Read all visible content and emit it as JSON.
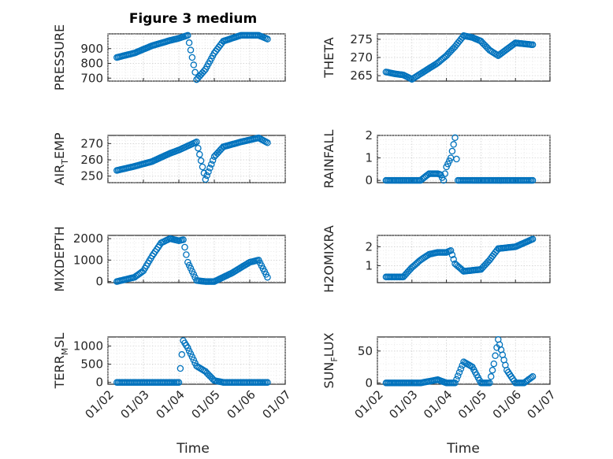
{
  "figure": {
    "title": "Figure 3 medium",
    "marker_color": "#0072BD",
    "xlabel": "Time",
    "x_tick_labels": [
      "01/02",
      "01/03",
      "01/04",
      "01/05",
      "01/06",
      "01/07"
    ]
  },
  "chart_data": [
    {
      "type": "scatter",
      "marker": "circle",
      "ylabel": "PRESSURE",
      "title": "Figure 3 medium",
      "xlabel": "",
      "xlim": [
        "01/02",
        "01/07"
      ],
      "ylim": [
        680,
        1000
      ],
      "yticks": [
        700,
        800,
        900
      ],
      "x": [
        "01/02 06:00",
        "01/02 18:00",
        "01/03 06:00",
        "01/03 18:00",
        "01/04 00:00",
        "01/04 03:00",
        "01/04 06:00",
        "01/04 12:00",
        "01/04 18:00",
        "01/05 00:00",
        "01/05 06:00",
        "01/05 18:00",
        "01/06 06:00",
        "01/06 12:00"
      ],
      "y": [
        840,
        870,
        920,
        955,
        970,
        980,
        990,
        690,
        760,
        870,
        950,
        990,
        990,
        965
      ]
    },
    {
      "type": "scatter",
      "marker": "circle",
      "ylabel": "THETA",
      "xlabel": "",
      "xlim": [
        "01/02",
        "01/07"
      ],
      "ylim": [
        263.5,
        276.5
      ],
      "yticks": [
        265,
        270,
        275
      ],
      "x": [
        "01/02 06:00",
        "01/02 12:00",
        "01/02 18:00",
        "01/03 00:00",
        "01/03 06:00",
        "01/03 18:00",
        "01/04 00:00",
        "01/04 06:00",
        "01/04 12:00",
        "01/04 18:00",
        "01/05 00:00",
        "01/05 06:00",
        "01/05 12:00",
        "01/06 00:00",
        "01/06 12:00"
      ],
      "y": [
        266,
        265.5,
        265.2,
        264,
        265.5,
        268.5,
        270.5,
        273,
        276,
        275.5,
        274.5,
        272,
        270.5,
        274,
        273.5
      ]
    },
    {
      "type": "scatter",
      "marker": "circle",
      "ylabel": "AIR_TEMP",
      "xlabel": "",
      "xlim": [
        "01/02",
        "01/07"
      ],
      "ylim": [
        246,
        275
      ],
      "yticks": [
        250,
        260,
        270
      ],
      "x": [
        "01/02 06:00",
        "01/02 18:00",
        "01/03 06:00",
        "01/03 18:00",
        "01/04 00:00",
        "01/04 06:00",
        "01/04 12:00",
        "01/04 18:00",
        "01/05 00:00",
        "01/05 06:00",
        "01/05 18:00",
        "01/06 06:00",
        "01/06 12:00"
      ],
      "y": [
        253.5,
        256,
        259,
        264,
        266,
        268.5,
        271,
        248,
        262,
        268,
        271,
        273.5,
        270.5
      ]
    },
    {
      "type": "scatter",
      "marker": "circle",
      "ylabel": "RAINFALL",
      "xlabel": "",
      "xlim": [
        "01/02",
        "01/07"
      ],
      "ylim": [
        -0.1,
        2
      ],
      "yticks": [
        0,
        1,
        2
      ],
      "x": [
        "01/02 06:00",
        "01/02 18:00",
        "01/03 06:00",
        "01/03 12:00",
        "01/03 18:00",
        "01/03 20:00",
        "01/03 22:00",
        "01/04 00:00",
        "01/04 03:00",
        "01/04 06:00",
        "01/04 08:00",
        "01/04 12:00",
        "01/04 18:00",
        "01/05 06:00",
        "01/05 18:00",
        "01/06 06:00",
        "01/06 12:00"
      ],
      "y": [
        0,
        0,
        0,
        0.3,
        0.3,
        0.25,
        0,
        0.6,
        1,
        1.9,
        0,
        0,
        0,
        0,
        0,
        0,
        0
      ]
    },
    {
      "type": "scatter",
      "marker": "circle",
      "ylabel": "MIXDEPTH",
      "xlabel": "",
      "xlim": [
        "01/02",
        "01/07"
      ],
      "ylim": [
        -50,
        2150
      ],
      "yticks": [
        0,
        1000,
        2000
      ],
      "x": [
        "01/02 06:00",
        "01/02 18:00",
        "01/03 00:00",
        "01/03 06:00",
        "01/03 12:00",
        "01/03 18:00",
        "01/04 00:00",
        "01/04 03:00",
        "01/04 06:00",
        "01/04 12:00",
        "01/04 18:00",
        "01/05 00:00",
        "01/05 12:00",
        "01/06 00:00",
        "01/06 06:00",
        "01/06 12:00"
      ],
      "y": [
        0,
        200,
        500,
        1200,
        1800,
        2000,
        1900,
        1950,
        900,
        50,
        0,
        0,
        400,
        900,
        1000,
        200
      ]
    },
    {
      "type": "scatter",
      "marker": "circle",
      "ylabel": "H2OMIXRA",
      "xlabel": "",
      "xlim": [
        "01/02",
        "01/07"
      ],
      "ylim": [
        0.1,
        2.6
      ],
      "yticks": [
        1,
        2
      ],
      "x": [
        "01/02 06:00",
        "01/02 18:00",
        "01/03 00:00",
        "01/03 06:00",
        "01/03 12:00",
        "01/03 18:00",
        "01/04 00:00",
        "01/04 03:00",
        "01/04 06:00",
        "01/04 12:00",
        "01/05 00:00",
        "01/05 06:00",
        "01/05 12:00",
        "01/06 00:00",
        "01/06 12:00"
      ],
      "y": [
        0.4,
        0.4,
        0.9,
        1.3,
        1.6,
        1.7,
        1.7,
        1.8,
        1.1,
        0.7,
        0.8,
        1.3,
        1.9,
        2.0,
        2.4
      ]
    },
    {
      "type": "scatter",
      "marker": "circle",
      "ylabel": "TERR_MSL",
      "xlabel": "Time",
      "xlim": [
        "01/02",
        "01/07"
      ],
      "ylim": [
        -50,
        1250
      ],
      "yticks": [
        0,
        500,
        1000
      ],
      "x": [
        "01/02 06:00",
        "01/03 00:00",
        "01/03 18:00",
        "01/04 00:00",
        "01/04 03:00",
        "01/04 06:00",
        "01/04 12:00",
        "01/04 18:00",
        "01/05 00:00",
        "01/05 06:00",
        "01/05 18:00",
        "01/06 06:00",
        "01/06 12:00"
      ],
      "y": [
        0,
        0,
        0,
        0,
        1150,
        950,
        450,
        300,
        50,
        0,
        0,
        0,
        0
      ]
    },
    {
      "type": "scatter",
      "marker": "circle",
      "ylabel": "SUN_FLUX",
      "xlabel": "Time",
      "xlim": [
        "01/02",
        "01/07"
      ],
      "ylim": [
        -2,
        72
      ],
      "yticks": [
        0,
        50
      ],
      "x": [
        "01/02 06:00",
        "01/02 18:00",
        "01/03 06:00",
        "01/03 18:00",
        "01/04 00:00",
        "01/04 06:00",
        "01/04 12:00",
        "01/04 18:00",
        "01/05 00:00",
        "01/05 06:00",
        "01/05 09:00",
        "01/05 12:00",
        "01/05 18:00",
        "01/06 00:00",
        "01/06 06:00",
        "01/06 12:00"
      ],
      "y": [
        0,
        0,
        0,
        5,
        0,
        0,
        33,
        25,
        0,
        0,
        30,
        68,
        20,
        0,
        0,
        10
      ]
    }
  ]
}
